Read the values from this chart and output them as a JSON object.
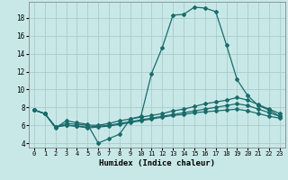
{
  "xlabel": "Humidex (Indice chaleur)",
  "xlim": [
    -0.5,
    23.5
  ],
  "ylim": [
    3.5,
    19.8
  ],
  "xticks": [
    0,
    1,
    2,
    3,
    4,
    5,
    6,
    7,
    8,
    9,
    10,
    11,
    12,
    13,
    14,
    15,
    16,
    17,
    18,
    19,
    20,
    21,
    22,
    23
  ],
  "yticks": [
    4,
    6,
    8,
    10,
    12,
    14,
    16,
    18
  ],
  "bg_color": "#c8e8e8",
  "grid_color": "#aacccc",
  "line_color": "#1a6b6b",
  "line1_x": [
    0,
    1,
    2,
    3,
    4,
    5,
    6,
    7,
    8,
    9,
    10,
    11,
    12,
    13,
    14,
    15,
    16,
    17,
    18,
    19,
    20,
    21,
    22,
    23
  ],
  "line1_y": [
    7.7,
    7.3,
    5.7,
    6.5,
    6.3,
    6.1,
    4.0,
    4.5,
    5.0,
    6.7,
    7.0,
    11.8,
    14.7,
    18.3,
    18.4,
    19.2,
    19.1,
    18.7,
    15.0,
    11.1,
    9.3,
    8.2,
    7.7,
    7.0
  ],
  "line2_x": [
    0,
    1,
    2,
    3,
    4,
    5,
    6,
    7,
    8,
    9,
    10,
    11,
    12,
    13,
    14,
    15,
    16,
    17,
    18,
    19,
    20,
    21,
    22,
    23
  ],
  "line2_y": [
    7.7,
    7.3,
    5.8,
    6.2,
    6.1,
    6.0,
    6.0,
    6.2,
    6.5,
    6.7,
    6.9,
    7.1,
    7.3,
    7.6,
    7.8,
    8.1,
    8.4,
    8.6,
    8.8,
    9.1,
    8.8,
    8.3,
    7.8,
    7.3
  ],
  "line3_x": [
    0,
    1,
    2,
    3,
    4,
    5,
    6,
    7,
    8,
    9,
    10,
    11,
    12,
    13,
    14,
    15,
    16,
    17,
    18,
    19,
    20,
    21,
    22,
    23
  ],
  "line3_y": [
    7.7,
    7.3,
    5.8,
    6.0,
    5.9,
    5.8,
    5.9,
    6.0,
    6.2,
    6.4,
    6.6,
    6.8,
    7.0,
    7.2,
    7.4,
    7.6,
    7.8,
    8.0,
    8.2,
    8.4,
    8.2,
    7.8,
    7.4,
    7.0
  ],
  "line4_x": [
    0,
    1,
    2,
    3,
    4,
    5,
    6,
    7,
    8,
    9,
    10,
    11,
    12,
    13,
    14,
    15,
    16,
    17,
    18,
    19,
    20,
    21,
    22,
    23
  ],
  "line4_y": [
    7.7,
    7.3,
    5.8,
    6.0,
    5.9,
    5.7,
    5.8,
    5.9,
    6.1,
    6.3,
    6.5,
    6.7,
    6.9,
    7.1,
    7.2,
    7.4,
    7.5,
    7.6,
    7.7,
    7.8,
    7.6,
    7.3,
    7.0,
    6.8
  ]
}
